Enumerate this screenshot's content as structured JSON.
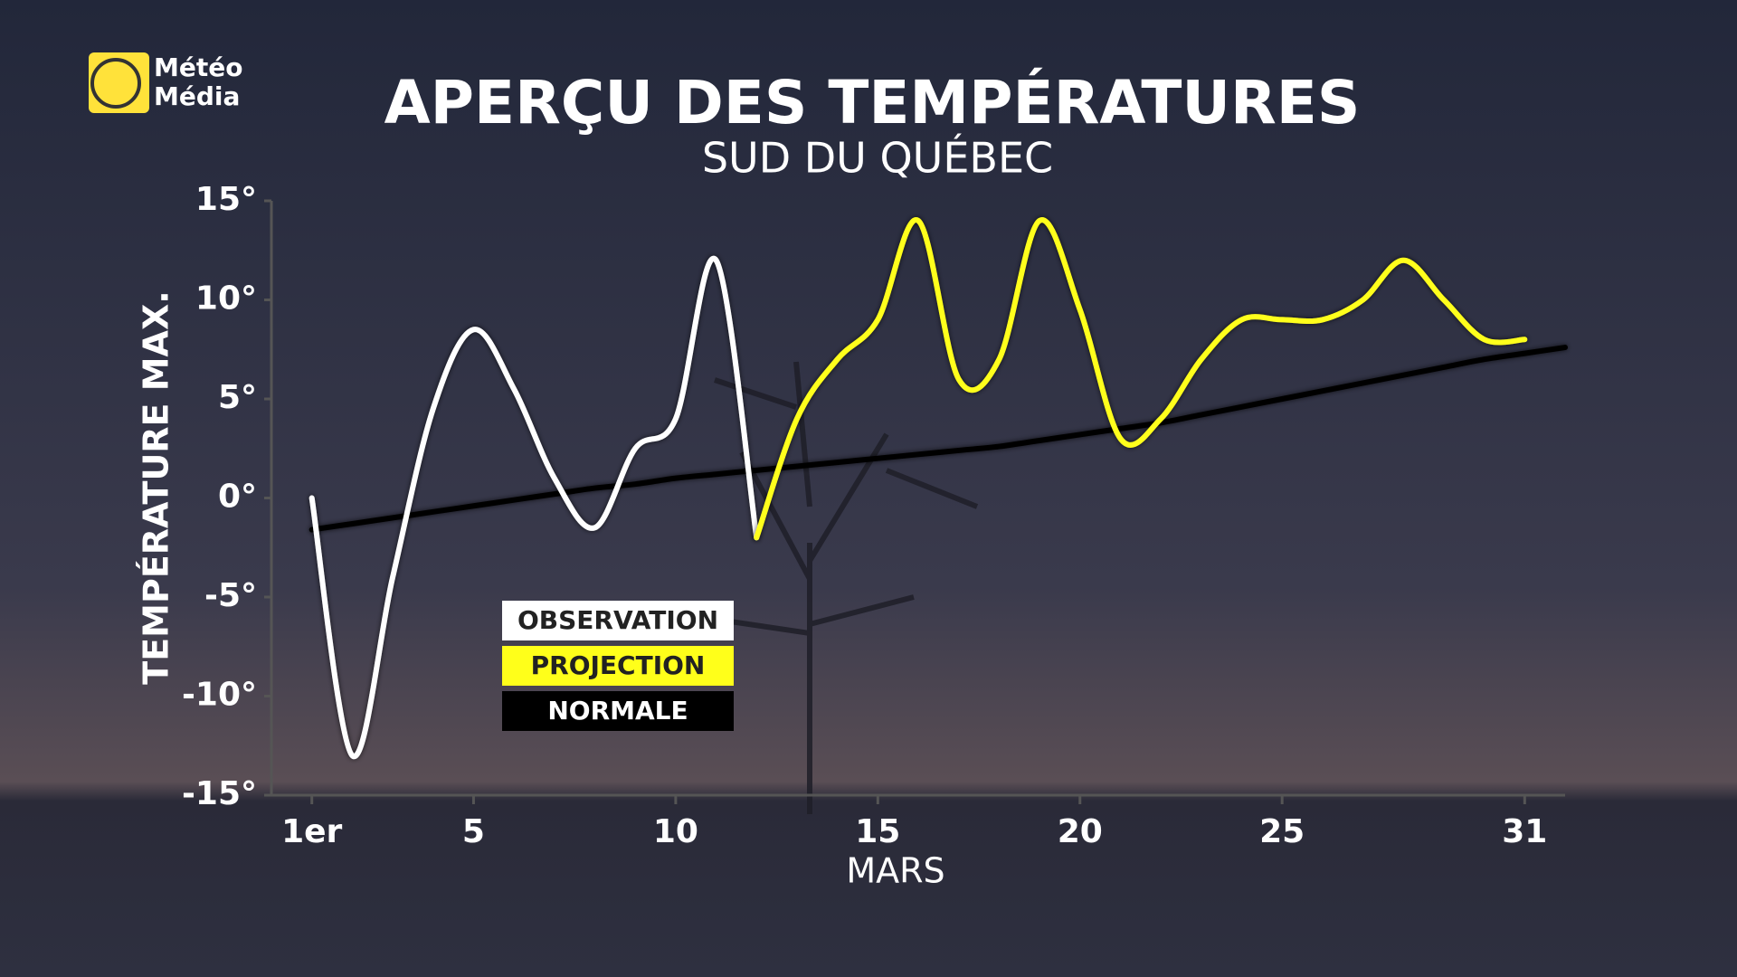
{
  "brand": {
    "line1": "Météo",
    "line2": "Média"
  },
  "chart_data": {
    "type": "line",
    "title": "APERÇU DES TEMPÉRATURES",
    "subtitle": "SUD DU QUÉBEC",
    "y_label": "TEMPÉRATURE MAX.",
    "x_label": "MARS",
    "x": [
      1,
      2,
      3,
      4,
      5,
      6,
      7,
      8,
      9,
      10,
      11,
      12,
      13,
      14,
      15,
      16,
      17,
      18,
      19,
      20,
      21,
      22,
      23,
      24,
      25,
      26,
      27,
      28,
      29,
      30,
      31,
      32
    ],
    "xlim": [
      0,
      32
    ],
    "xticks": [
      {
        "value": 1,
        "label": "1er"
      },
      5,
      10,
      15,
      20,
      25,
      31
    ],
    "ylim": [
      -15,
      15
    ],
    "yticks": [
      {
        "value": 15,
        "label": "15°"
      },
      {
        "value": 10,
        "label": "10°"
      },
      {
        "value": 5,
        "label": "5°"
      },
      {
        "value": 0,
        "label": "0°"
      },
      {
        "value": -5,
        "label": "-5°"
      },
      {
        "value": -10,
        "label": "-10°"
      },
      {
        "value": -15,
        "label": "-15°"
      }
    ],
    "series": [
      {
        "name": "OBSERVATION",
        "color": "#ffffff",
        "values": [
          0,
          -13,
          -4,
          4.5,
          8.5,
          5.5,
          1,
          -1.5,
          2.5,
          4,
          12,
          -2,
          null,
          null,
          null,
          null,
          null,
          null,
          null,
          null,
          null,
          null,
          null,
          null,
          null,
          null,
          null,
          null,
          null,
          null,
          null,
          null
        ]
      },
      {
        "name": "PROJECTION",
        "color": "#ffff1a",
        "values": [
          null,
          null,
          null,
          null,
          null,
          null,
          null,
          null,
          null,
          null,
          null,
          -2,
          4,
          7,
          9,
          14,
          6,
          7,
          14,
          9.5,
          3,
          4,
          7,
          9,
          9,
          9,
          10,
          12,
          10,
          8,
          8,
          null
        ]
      },
      {
        "name": "NORMALE",
        "color": "#000000",
        "values": [
          -1.6,
          -1.3,
          -1,
          -0.7,
          -0.4,
          -0.1,
          0.2,
          0.5,
          0.7,
          1,
          1.2,
          1.4,
          1.6,
          1.8,
          2,
          2.2,
          2.4,
          2.6,
          2.9,
          3.2,
          3.5,
          3.8,
          4.2,
          4.6,
          5,
          5.4,
          5.8,
          6.2,
          6.6,
          7,
          7.3,
          7.6
        ]
      }
    ]
  }
}
